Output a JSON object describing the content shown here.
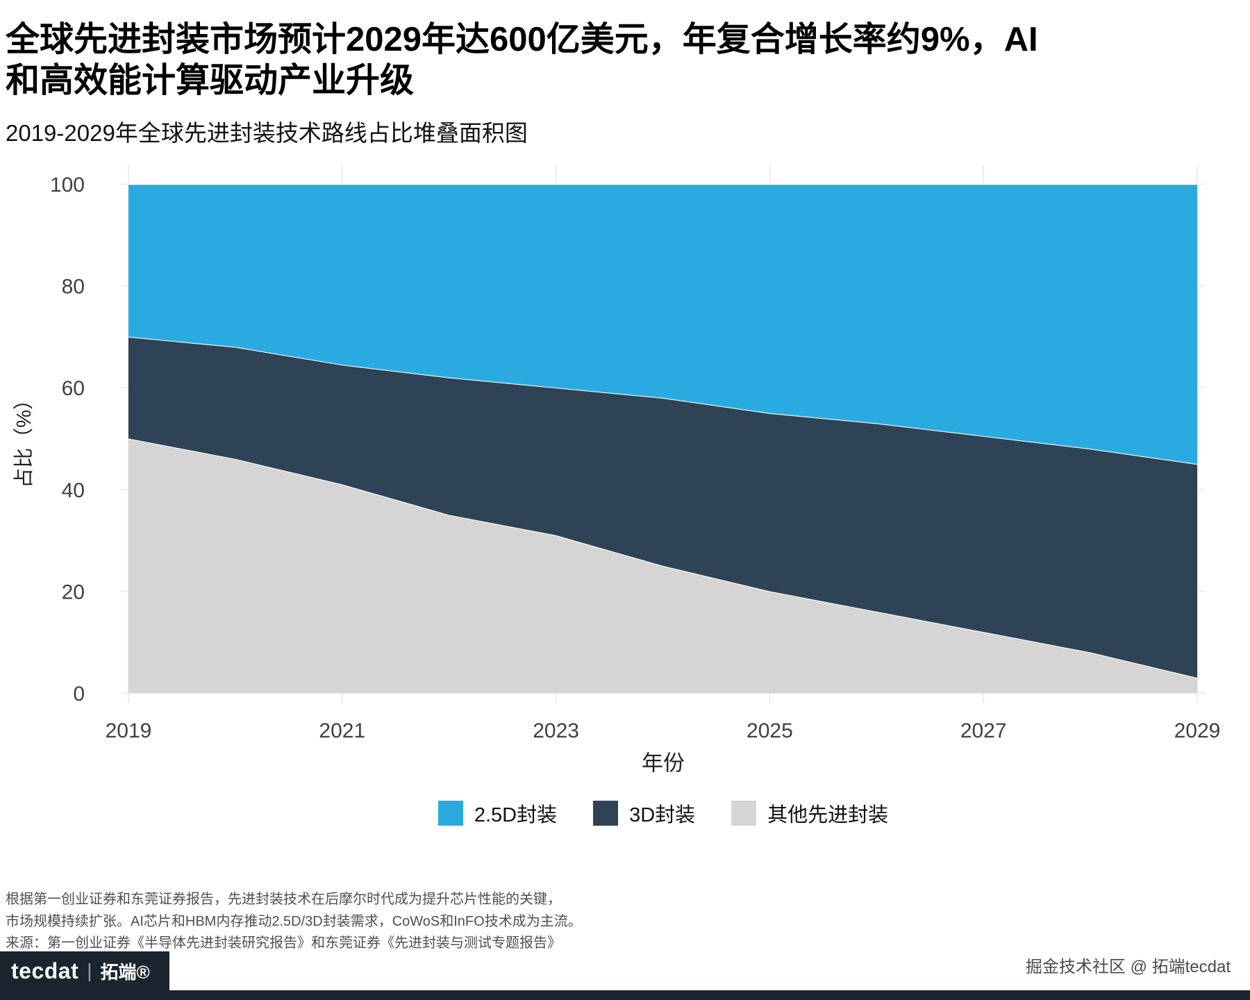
{
  "header": {
    "title_line1": "全球先进封装市场预计2029年达600亿美元，年复合增长率约9%，AI",
    "title_line2": "和高效能计算驱动产业升级",
    "subtitle": "2019-2029年全球先进封装技术路线占比堆叠面积图"
  },
  "chart_data": {
    "type": "area",
    "stacked": true,
    "title": "2019-2029年全球先进封装技术路线占比堆叠面积图",
    "xlabel": "年份",
    "ylabel": "占比（%）",
    "x": [
      2019,
      2020,
      2021,
      2022,
      2023,
      2024,
      2025,
      2026,
      2027,
      2028,
      2029
    ],
    "x_ticks": [
      2019,
      2021,
      2023,
      2025,
      2027,
      2029
    ],
    "y_ticks": [
      0,
      20,
      40,
      60,
      80,
      100
    ],
    "ylim": [
      0,
      100
    ],
    "grid": true,
    "legend_position": "bottom",
    "series": [
      {
        "name": "其他先进封装",
        "color": "#D5D5D5",
        "values": [
          50,
          46,
          41,
          35,
          31,
          25,
          20,
          16,
          12,
          8,
          3
        ]
      },
      {
        "name": "3D封装",
        "color": "#2F4356",
        "values": [
          20,
          22,
          23.5,
          27,
          29,
          33,
          35,
          37,
          38.5,
          40,
          42
        ]
      },
      {
        "name": "2.5D封装",
        "color": "#29ABE2",
        "values": [
          30,
          32,
          35.5,
          38,
          40,
          42,
          45,
          47,
          49.5,
          52,
          55
        ]
      }
    ]
  },
  "legend": {
    "items": [
      {
        "label": "2.5D封装",
        "color": "#29ABE2"
      },
      {
        "label": "3D封装",
        "color": "#2F4356"
      },
      {
        "label": "其他先进封装",
        "color": "#D5D5D5"
      }
    ]
  },
  "footnotes": [
    "根据第一创业证券和东莞证券报告，先进封装技术在后摩尔时代成为提升芯片性能的关键，",
    "市场规模持续扩张。AI芯片和HBM内存推动2.5D/3D封装需求，CoWoS和InFO技术成为主流。",
    "来源：第一创业证券《半导体先进封装研究报告》和东莞证券《先进封装与测试专题报告》"
  ],
  "footer": {
    "logo_text": "tecdat",
    "logo_sep": "|",
    "logo_brand": "拓端®",
    "credit": "掘金技术社区 @ 拓端tecdat"
  }
}
